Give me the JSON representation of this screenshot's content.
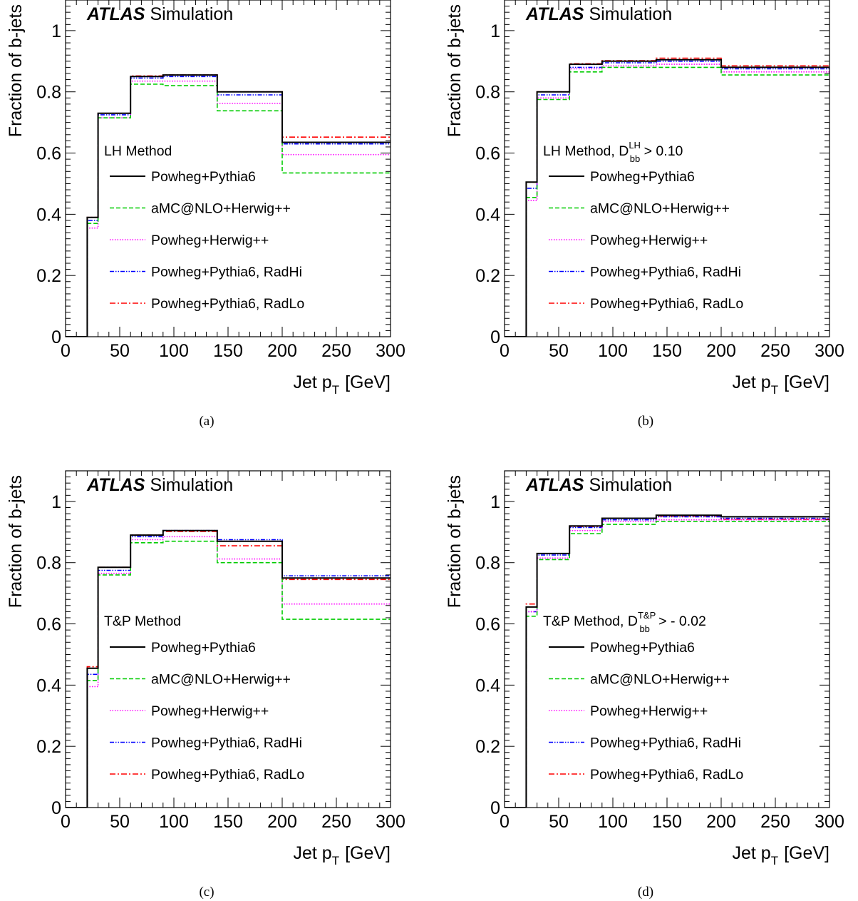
{
  "figure": {
    "panels": [
      {
        "caption": "(a)",
        "legend_title": "LH Method",
        "legend_sub": "",
        "legend_sup": "",
        "legend_tail": ""
      },
      {
        "caption": "(b)",
        "legend_title": "LH Method, D",
        "legend_sub": "bb",
        "legend_sup": "LH",
        "legend_tail": " > 0.10"
      },
      {
        "caption": "(c)",
        "legend_title": "T&P Method",
        "legend_sub": "",
        "legend_sup": "",
        "legend_tail": ""
      },
      {
        "caption": "(d)",
        "legend_title": "T&P Method, D",
        "legend_sub": "bb",
        "legend_sup": "T&P",
        "legend_tail": " > - 0.02"
      }
    ]
  },
  "chart_data": [
    {
      "type": "histogram",
      "label_bold": "ATLAS",
      "label_rest": "Simulation",
      "ylabel": "Fraction of b-jets",
      "xlabel_main": "Jet p",
      "xlabel_sub": "T",
      "xlabel_unit": "[GeV]",
      "xlim": [
        0,
        300
      ],
      "ylim": [
        0,
        1.1
      ],
      "xticks": [
        0,
        50,
        100,
        150,
        200,
        250,
        300
      ],
      "yticks": [
        "0",
        "0.2",
        "0.4",
        "0.6",
        "0.8",
        "1"
      ],
      "bin_edges": [
        0,
        20,
        30,
        60,
        90,
        140,
        200,
        300
      ],
      "series": [
        {
          "name": "Powheg+Pythia6",
          "color": "#000000",
          "style": "solid",
          "values": [
            0,
            0.39,
            0.73,
            0.85,
            0.855,
            0.8,
            0.635
          ]
        },
        {
          "name": "aMC@NLO+Herwig++",
          "color": "#00cc00",
          "style": "dashed",
          "values": [
            0,
            0.37,
            0.715,
            0.825,
            0.82,
            0.738,
            0.535
          ]
        },
        {
          "name": "Powheg+Herwig++",
          "color": "#ff00ff",
          "style": "dotted",
          "values": [
            0,
            0.355,
            0.715,
            0.835,
            0.835,
            0.762,
            0.595
          ]
        },
        {
          "name": "Powheg+Pythia6, RadHi",
          "color": "#0000ff",
          "style": "dashdotdot",
          "values": [
            0,
            0.38,
            0.725,
            0.845,
            0.85,
            0.79,
            0.63
          ]
        },
        {
          "name": "Powheg+Pythia6, RadLo",
          "color": "#ff0000",
          "style": "dashdot",
          "values": [
            0,
            0.39,
            0.73,
            0.852,
            0.855,
            0.8,
            0.652
          ]
        }
      ]
    },
    {
      "type": "histogram",
      "label_bold": "ATLAS",
      "label_rest": "Simulation",
      "ylabel": "Fraction of b-jets",
      "xlabel_main": "Jet p",
      "xlabel_sub": "T",
      "xlabel_unit": "[GeV]",
      "xlim": [
        0,
        300
      ],
      "ylim": [
        0,
        1.1
      ],
      "xticks": [
        0,
        50,
        100,
        150,
        200,
        250,
        300
      ],
      "yticks": [
        "0",
        "0.2",
        "0.4",
        "0.6",
        "0.8",
        "1"
      ],
      "bin_edges": [
        0,
        20,
        30,
        60,
        90,
        140,
        200,
        300
      ],
      "series": [
        {
          "name": "Powheg+Pythia6",
          "color": "#000000",
          "style": "solid",
          "values": [
            0,
            0.505,
            0.8,
            0.89,
            0.9,
            0.905,
            0.88
          ]
        },
        {
          "name": "aMC@NLO+Herwig++",
          "color": "#00cc00",
          "style": "dashed",
          "values": [
            0,
            0.455,
            0.775,
            0.865,
            0.88,
            0.88,
            0.855
          ]
        },
        {
          "name": "Powheg+Herwig++",
          "color": "#ff00ff",
          "style": "dotted",
          "values": [
            0,
            0.445,
            0.78,
            0.875,
            0.885,
            0.89,
            0.865
          ]
        },
        {
          "name": "Powheg+Pythia6, RadHi",
          "color": "#0000ff",
          "style": "dashdotdot",
          "values": [
            0,
            0.485,
            0.79,
            0.88,
            0.895,
            0.9,
            0.875
          ]
        },
        {
          "name": "Powheg+Pythia6, RadLo",
          "color": "#ff0000",
          "style": "dashdot",
          "values": [
            0,
            0.505,
            0.8,
            0.892,
            0.902,
            0.91,
            0.885
          ]
        }
      ]
    },
    {
      "type": "histogram",
      "label_bold": "ATLAS",
      "label_rest": "Simulation",
      "ylabel": "Fraction of b-jets",
      "xlabel_main": "Jet p",
      "xlabel_sub": "T",
      "xlabel_unit": "[GeV]",
      "xlim": [
        0,
        300
      ],
      "ylim": [
        0,
        1.1
      ],
      "xticks": [
        0,
        50,
        100,
        150,
        200,
        250,
        300
      ],
      "yticks": [
        "0",
        "0.2",
        "0.4",
        "0.6",
        "0.8",
        "1"
      ],
      "bin_edges": [
        0,
        20,
        30,
        60,
        90,
        140,
        200,
        300
      ],
      "series": [
        {
          "name": "Powheg+Pythia6",
          "color": "#000000",
          "style": "solid",
          "values": [
            0,
            0.455,
            0.785,
            0.89,
            0.905,
            0.87,
            0.75
          ]
        },
        {
          "name": "aMC@NLO+Herwig++",
          "color": "#00cc00",
          "style": "dashed",
          "values": [
            0,
            0.415,
            0.76,
            0.865,
            0.87,
            0.8,
            0.615
          ]
        },
        {
          "name": "Powheg+Herwig++",
          "color": "#ff00ff",
          "style": "dotted",
          "values": [
            0,
            0.395,
            0.765,
            0.875,
            0.885,
            0.812,
            0.665
          ]
        },
        {
          "name": "Powheg+Pythia6, RadHi",
          "color": "#0000ff",
          "style": "dashdotdot",
          "values": [
            0,
            0.435,
            0.775,
            0.885,
            0.905,
            0.875,
            0.757
          ]
        },
        {
          "name": "Powheg+Pythia6, RadLo",
          "color": "#ff0000",
          "style": "dashdot",
          "values": [
            0,
            0.46,
            0.785,
            0.89,
            0.902,
            0.855,
            0.745
          ]
        }
      ]
    },
    {
      "type": "histogram",
      "label_bold": "ATLAS",
      "label_rest": "Simulation",
      "ylabel": "Fraction of b-jets",
      "xlabel_main": "Jet p",
      "xlabel_sub": "T",
      "xlabel_unit": "[GeV]",
      "xlim": [
        0,
        300
      ],
      "ylim": [
        0,
        1.1
      ],
      "xticks": [
        0,
        50,
        100,
        150,
        200,
        250,
        300
      ],
      "yticks": [
        "0",
        "0.2",
        "0.4",
        "0.6",
        "0.8",
        "1"
      ],
      "bin_edges": [
        0,
        20,
        30,
        60,
        90,
        140,
        200,
        300
      ],
      "series": [
        {
          "name": "Powheg+Pythia6",
          "color": "#000000",
          "style": "solid",
          "values": [
            0,
            0.655,
            0.83,
            0.92,
            0.945,
            0.955,
            0.95
          ]
        },
        {
          "name": "aMC@NLO+Herwig++",
          "color": "#00cc00",
          "style": "dashed",
          "values": [
            0,
            0.625,
            0.81,
            0.895,
            0.925,
            0.935,
            0.935
          ]
        },
        {
          "name": "Powheg+Herwig++",
          "color": "#ff00ff",
          "style": "dotted",
          "values": [
            0,
            0.64,
            0.815,
            0.905,
            0.935,
            0.94,
            0.94
          ]
        },
        {
          "name": "Powheg+Pythia6, RadHi",
          "color": "#0000ff",
          "style": "dashdotdot",
          "values": [
            0,
            0.64,
            0.825,
            0.915,
            0.94,
            0.95,
            0.945
          ]
        },
        {
          "name": "Powheg+Pythia6, RadLo",
          "color": "#ff0000",
          "style": "dashdot",
          "values": [
            0,
            0.665,
            0.83,
            0.918,
            0.945,
            0.952,
            0.942
          ]
        }
      ]
    }
  ]
}
